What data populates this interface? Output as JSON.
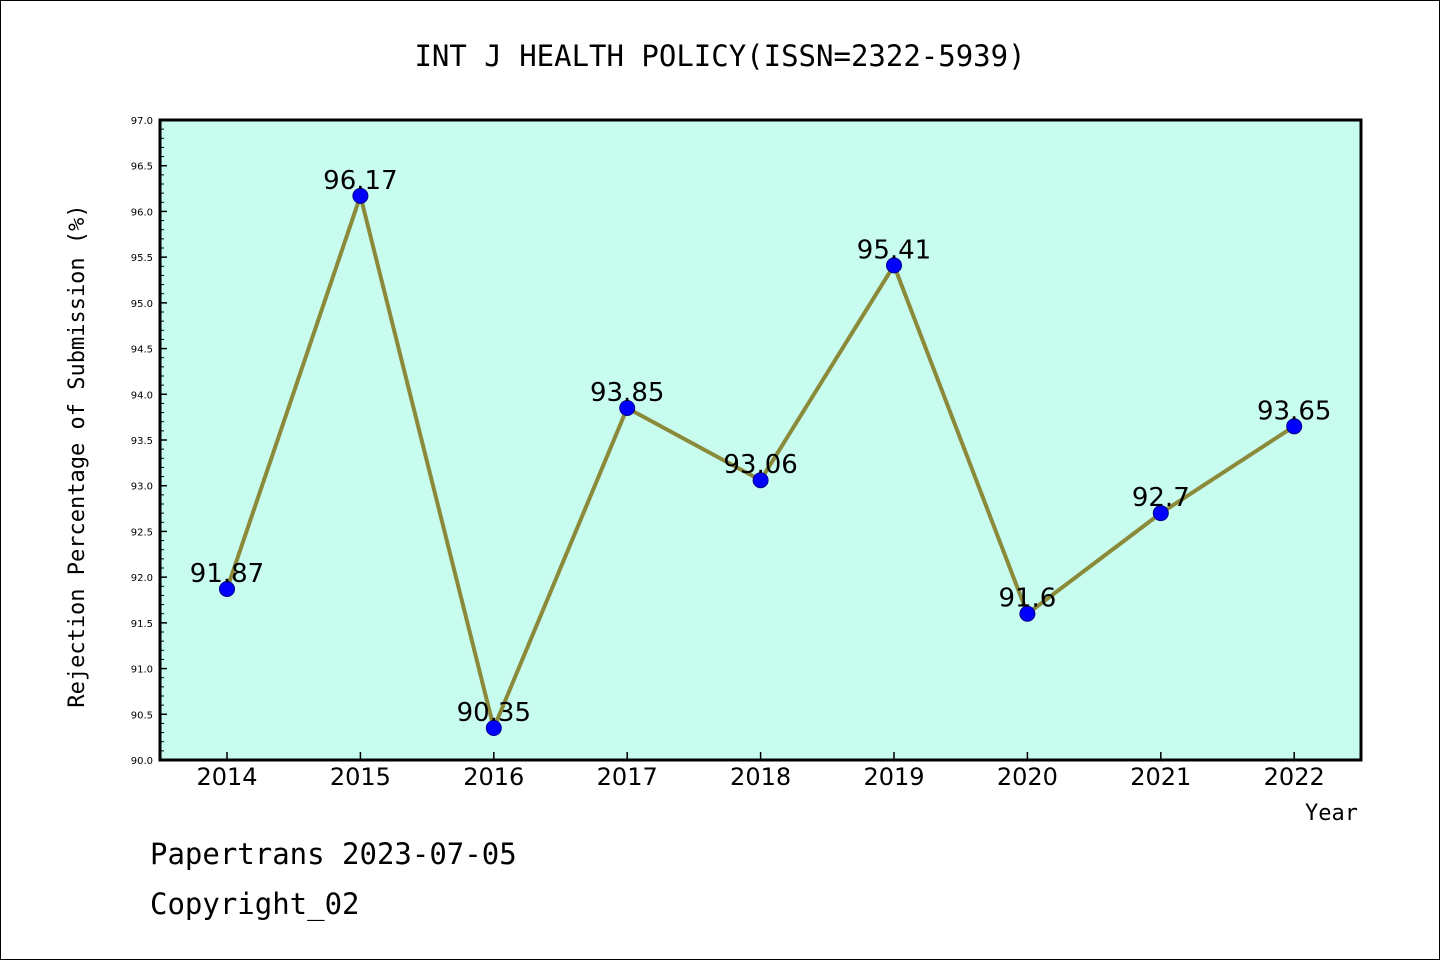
{
  "chart_data": {
    "type": "line",
    "title": "INT J HEALTH POLICY(ISSN=2322-5939)",
    "xlabel": "Year",
    "ylabel": "Rejection Percentage of Submission (%)",
    "categories": [
      "2014",
      "2015",
      "2016",
      "2017",
      "2018",
      "2019",
      "2020",
      "2021",
      "2022"
    ],
    "series": [
      {
        "values": [
          91.87,
          96.17,
          90.35,
          93.85,
          93.06,
          95.41,
          91.6,
          92.7,
          93.65
        ],
        "labels": [
          "91.87",
          "96.17",
          "90.35",
          "93.85",
          "93.06",
          "95.41",
          "91.6",
          "92.7",
          "93.65"
        ]
      }
    ],
    "ylim": [
      90.0,
      97.0
    ],
    "yticks": [
      "90.0",
      "90.5",
      "91.0",
      "91.5",
      "92.0",
      "92.5",
      "93.0",
      "93.5",
      "94.0",
      "94.5",
      "95.0",
      "95.5",
      "96.0",
      "96.5",
      "97.0"
    ],
    "grid": false,
    "colors": {
      "background": "#c8fcee",
      "line": "#8b8a3a",
      "marker": "#0000ff"
    }
  },
  "footer": {
    "line1": "Papertrans 2023-07-05",
    "line2": "Copyright_02"
  }
}
